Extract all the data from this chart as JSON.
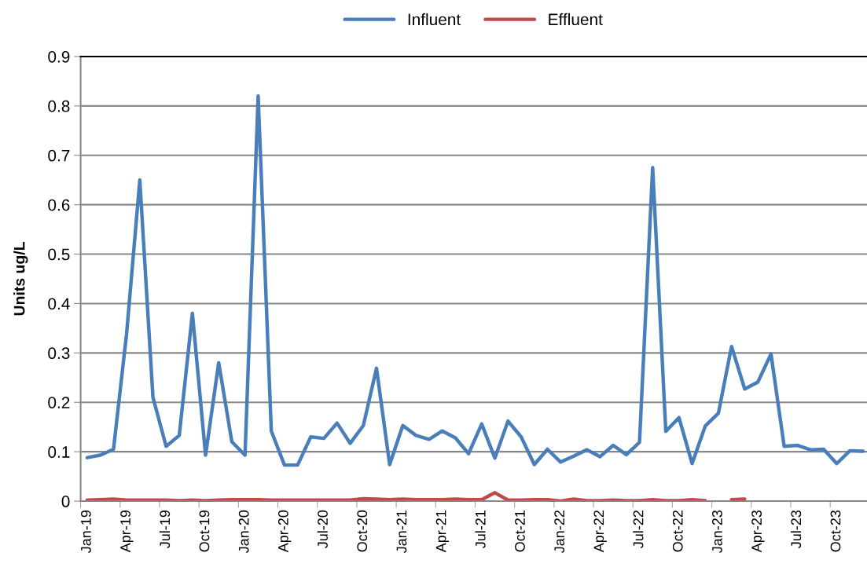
{
  "chart_data": {
    "type": "line",
    "ylabel": "Units ug/L",
    "categories": [
      "Jan-19",
      null,
      null,
      "Apr-19",
      null,
      null,
      "Jul-19",
      null,
      null,
      "Oct-19",
      null,
      null,
      "Jan-20",
      null,
      null,
      "Apr-20",
      null,
      null,
      "Jul-20",
      null,
      null,
      "Oct-20",
      null,
      null,
      "Jan-21",
      null,
      null,
      "Apr-21",
      null,
      null,
      "Jul-21",
      null,
      null,
      "Oct-21",
      null,
      null,
      "Jan-22",
      null,
      null,
      "Apr-22",
      null,
      null,
      "Jul-22",
      null,
      null,
      "Oct-22",
      null,
      null,
      "Jan-23",
      null,
      null,
      "Apr-23",
      null,
      null,
      "Jul-23",
      null,
      null,
      "Oct-23",
      null,
      null
    ],
    "series": [
      {
        "name": "Influent",
        "color": "#4a7ebb",
        "values": [
          0.088,
          0.093,
          0.105,
          0.34,
          0.65,
          0.21,
          0.111,
          0.133,
          0.38,
          0.093,
          0.28,
          0.12,
          0.093,
          0.82,
          0.142,
          0.073,
          0.073,
          0.13,
          0.127,
          0.158,
          0.117,
          0.153,
          0.269,
          0.074,
          0.153,
          0.133,
          0.125,
          0.142,
          0.128,
          0.096,
          0.156,
          0.087,
          0.162,
          0.13,
          0.074,
          0.105,
          0.079,
          0.091,
          0.104,
          0.09,
          0.113,
          0.094,
          0.119,
          0.675,
          0.141,
          0.169,
          0.076,
          0.152,
          0.178,
          0.313,
          0.227,
          0.241,
          0.298,
          0.111,
          0.113,
          0.104,
          0.105,
          0.076,
          0.102,
          0.101
        ]
      },
      {
        "name": "Effluent",
        "color": "#be4b48",
        "values": [
          0.002,
          0.003,
          0.004,
          0.002,
          0.002,
          0.002,
          0.002,
          0.001,
          0.002,
          0.001,
          0.002,
          0.003,
          0.003,
          0.003,
          0.002,
          0.002,
          0.002,
          0.002,
          0.002,
          0.002,
          0.002,
          0.005,
          0.004,
          0.003,
          0.004,
          0.003,
          0.003,
          0.003,
          0.004,
          0.003,
          0.003,
          0.017,
          0.002,
          0.002,
          0.003,
          0.003,
          0.0,
          0.004,
          0.001,
          0.001,
          0.002,
          0.001,
          0.001,
          0.003,
          0.001,
          0.001,
          0.003,
          0.001,
          null,
          0.003,
          0.004,
          null,
          null,
          null,
          null,
          null,
          null,
          null,
          null,
          null
        ]
      }
    ],
    "ylim": [
      0,
      0.9
    ],
    "yticks": [
      0,
      0.1,
      0.2,
      0.3,
      0.4,
      0.5,
      0.6,
      0.7,
      0.8,
      0.9
    ],
    "grid": "y",
    "legend": "top",
    "marker": "none",
    "line_style": "solid"
  }
}
